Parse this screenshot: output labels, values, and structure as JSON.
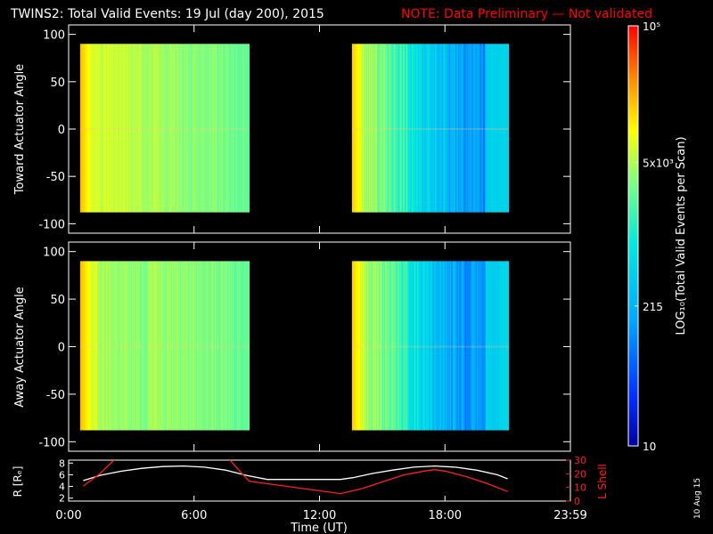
{
  "header": {
    "title": "TWINS2: Total Valid Events: 19 Jul (day 200), 2015",
    "note": "NOTE: Data Preliminary — Not validated"
  },
  "colors": {
    "background": "#000000",
    "axis": "#ffffff",
    "note": "#ff0000",
    "r_line": "#ffffff",
    "lshell_line": "#ff2020"
  },
  "chart_data": [
    {
      "type": "heatmap",
      "name": "toward-panel",
      "ylabel": "Toward Actuator Angle",
      "ylim": [
        -110,
        110
      ],
      "yticks": [
        -100,
        -50,
        0,
        50,
        100
      ],
      "xlim": [
        0,
        24
      ],
      "angle_range": [
        -88,
        90
      ],
      "colorscale": "log",
      "blocks": [
        {
          "x_start": 0.55,
          "x_end": 8.65,
          "profile": "warm"
        },
        {
          "x_start": 13.55,
          "x_end": 21.05,
          "profile": "cool"
        }
      ]
    },
    {
      "type": "heatmap",
      "name": "away-panel",
      "ylabel": "Away Actuator Angle",
      "ylim": [
        -110,
        110
      ],
      "yticks": [
        -100,
        -50,
        0,
        50,
        100
      ],
      "xlim": [
        0,
        24
      ],
      "angle_range": [
        -88,
        90
      ],
      "colorscale": "log",
      "blocks": [
        {
          "x_start": 0.55,
          "x_end": 8.65,
          "profile": "warm"
        },
        {
          "x_start": 13.55,
          "x_end": 21.05,
          "profile": "cool"
        }
      ]
    },
    {
      "type": "line",
      "name": "orbit-panel",
      "xlabel": "Time (UT)",
      "xlim": [
        0,
        24
      ],
      "xticks": [
        "0:00",
        "6:00",
        "12:00",
        "18:00",
        "23:59"
      ],
      "left_axis": {
        "label": "R [Rₑ]",
        "ylim": [
          1.5,
          8.5
        ],
        "ticks": [
          2,
          4,
          6,
          8
        ]
      },
      "right_axis": {
        "label": "L Shell",
        "ylim": [
          0,
          30
        ],
        "ticks": [
          0,
          10,
          20,
          30
        ]
      },
      "series": [
        {
          "axis": "left",
          "x": [
            0.7,
            1.5,
            2.5,
            3.5,
            4.5,
            5.5,
            6.5,
            7.5,
            8.5,
            9.5,
            13.0,
            13.6,
            14.5,
            15.5,
            16.5,
            17.5,
            18.5,
            19.5,
            20.5,
            21.0
          ],
          "y": [
            5.0,
            5.9,
            6.6,
            7.1,
            7.4,
            7.5,
            7.3,
            6.8,
            5.9,
            5.2,
            5.2,
            5.5,
            6.2,
            6.8,
            7.3,
            7.5,
            7.3,
            6.8,
            6.0,
            5.3
          ]
        },
        {
          "axis": "right",
          "x": [
            0.7,
            1.5,
            2.3,
            7.6,
            8.3,
            8.65,
            13.0,
            14.0,
            15.0,
            16.0,
            17.0,
            17.5,
            18.0,
            19.0,
            20.0,
            21.0
          ],
          "y": [
            11.0,
            20.0,
            32.0,
            32.0,
            20.0,
            14.5,
            5.5,
            9.0,
            14.0,
            19.0,
            22.0,
            23.0,
            22.0,
            18.0,
            13.0,
            7.0
          ]
        }
      ]
    },
    {
      "type": "heatmap",
      "name": "colorbar",
      "label": "LOG₁₀(Total Valid Events per Scan)",
      "scale": "log",
      "range": [
        10,
        100000
      ],
      "tick_labels": [
        {
          "value": 10,
          "text": "10"
        },
        {
          "value": 215,
          "text": "215"
        },
        {
          "value": 5000,
          "text": "5x10³"
        },
        {
          "value": 100000,
          "text": "10⁵"
        }
      ]
    }
  ],
  "footer": {
    "date": "10 Aug 15"
  }
}
